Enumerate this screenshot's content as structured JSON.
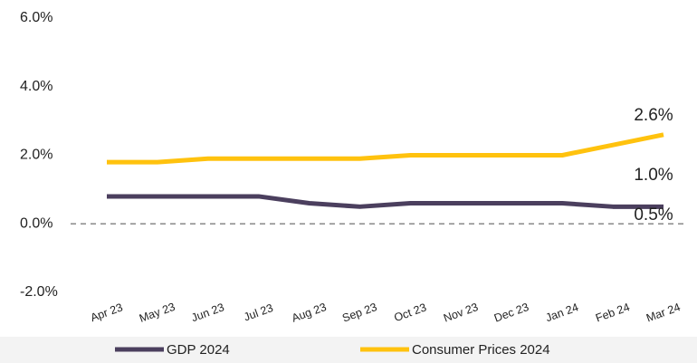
{
  "chart_data": {
    "type": "line",
    "categories": [
      "Apr 23",
      "May 23",
      "Jun 23",
      "Jul 23",
      "Aug 23",
      "Sep 23",
      "Oct 23",
      "Nov 23",
      "Dec 23",
      "Jan 24",
      "Feb 24",
      "Mar 24"
    ],
    "series": [
      {
        "name": "GDP 2024",
        "color": "#4b3f5e",
        "values": [
          0.8,
          0.8,
          0.8,
          0.8,
          0.6,
          0.5,
          0.6,
          0.6,
          0.6,
          0.6,
          0.5,
          0.5
        ]
      },
      {
        "name": "Consumer Prices 2024",
        "color": "#ffc20e",
        "values": [
          1.8,
          1.8,
          1.9,
          1.9,
          1.9,
          1.9,
          2.0,
          2.0,
          2.0,
          2.0,
          2.3,
          2.6
        ]
      }
    ],
    "ylim": [
      -2,
      6
    ],
    "yticks": [
      {
        "value": -2,
        "label": "-2.0%"
      },
      {
        "value": 0,
        "label": "0.0%"
      },
      {
        "value": 2,
        "label": "2.0%"
      },
      {
        "value": 4,
        "label": "4.0%"
      },
      {
        "value": 6,
        "label": "6.0%"
      }
    ],
    "annotations": [
      "2.6%",
      "1.0%",
      "0.5%"
    ],
    "zero_line": true,
    "legend": "bottom"
  }
}
